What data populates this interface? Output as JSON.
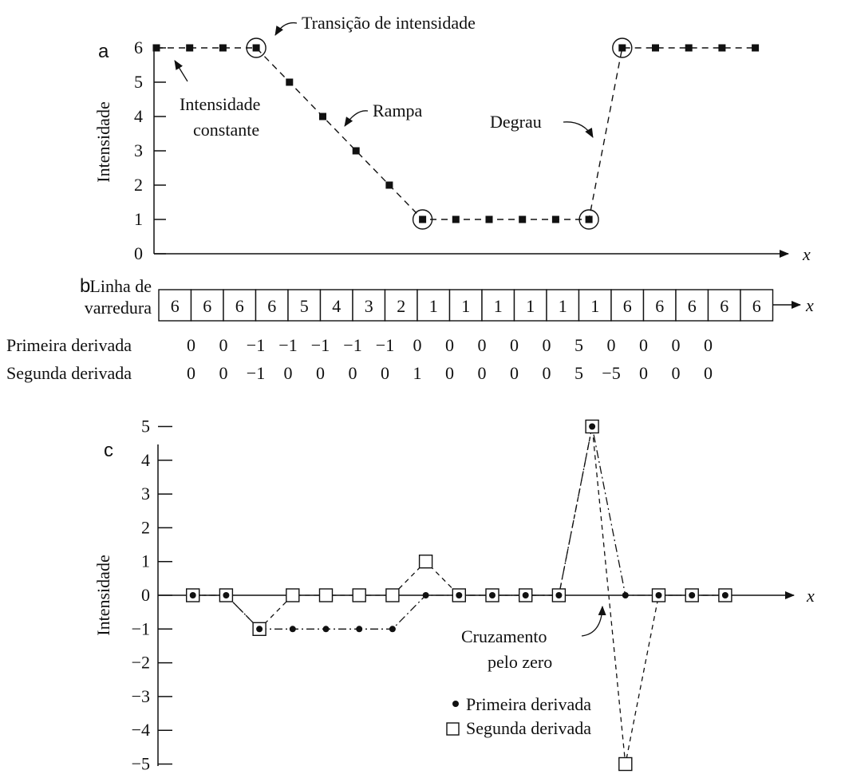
{
  "panel_a": {
    "letter": "a",
    "ylabel": "Intensidade",
    "xlabel": "x",
    "annotations": {
      "transition": "Transição de intensidade",
      "constant_line1": "Intensidade",
      "constant_line2": "constante",
      "ramp": "Rampa",
      "step": "Degrau"
    }
  },
  "panel_b": {
    "letter": "b",
    "row_label_line1": "Linha de",
    "row_label_line2": "varredura",
    "xlabel": "x",
    "first_label": "Primeira derivada",
    "second_label": "Segunda derivada"
  },
  "panel_c": {
    "letter": "c",
    "ylabel": "Intensidade",
    "xlabel": "x",
    "annotations": {
      "zero_cross_line1": "Cruzamento",
      "zero_cross_line2": "pelo zero"
    },
    "legend_first": "Primeira derivada",
    "legend_second": "Segunda derivada"
  },
  "chart_data": [
    {
      "type": "line",
      "panel": "a",
      "x": [
        0,
        1,
        2,
        3,
        4,
        5,
        6,
        7,
        8,
        9,
        10,
        11,
        12,
        13,
        14,
        15,
        16,
        17,
        18
      ],
      "values": [
        6,
        6,
        6,
        6,
        5,
        4,
        3,
        2,
        1,
        1,
        1,
        1,
        1,
        1,
        6,
        6,
        6,
        6,
        6
      ],
      "circled_points": [
        3,
        8,
        13,
        14
      ],
      "ylim": [
        0,
        6
      ],
      "yticks": [
        "0",
        "1",
        "2",
        "3",
        "4",
        "5",
        "6"
      ],
      "ylabel": "Intensidade",
      "xlabel": "x"
    },
    {
      "type": "table",
      "panel": "b",
      "scan_line": [
        "6",
        "6",
        "6",
        "6",
        "5",
        "4",
        "3",
        "2",
        "1",
        "1",
        "1",
        "1",
        "1",
        "1",
        "6",
        "6",
        "6",
        "6",
        "6"
      ],
      "first_derivative": [
        "0",
        "0",
        "−1",
        "−1",
        "−1",
        "−1",
        "−1",
        "0",
        "0",
        "0",
        "0",
        "0",
        "5",
        "0",
        "0",
        "0",
        "0"
      ],
      "second_derivative": [
        "0",
        "0",
        "−1",
        "0",
        "0",
        "0",
        "0",
        "1",
        "0",
        "0",
        "0",
        "0",
        "5",
        "−5",
        "0",
        "0",
        "0"
      ]
    },
    {
      "type": "line",
      "panel": "c",
      "x": [
        1,
        2,
        3,
        4,
        5,
        6,
        7,
        8,
        9,
        10,
        11,
        12,
        13,
        14,
        15,
        16,
        17
      ],
      "series": [
        {
          "name": "Primeira derivada",
          "values": [
            0,
            0,
            -1,
            -1,
            -1,
            -1,
            -1,
            0,
            0,
            0,
            0,
            0,
            5,
            0,
            0,
            0,
            0
          ]
        },
        {
          "name": "Segunda derivada",
          "values": [
            0,
            0,
            -1,
            0,
            0,
            0,
            0,
            1,
            0,
            0,
            0,
            0,
            5,
            -5,
            0,
            0,
            0
          ]
        }
      ],
      "ylim": [
        -5,
        5
      ],
      "yticks": [
        "−5",
        "−4",
        "−3",
        "−2",
        "−1",
        "0",
        "1",
        "2",
        "3",
        "4",
        "5"
      ],
      "ylabel": "Intensidade",
      "xlabel": "x",
      "legend": "bottom-right"
    }
  ]
}
